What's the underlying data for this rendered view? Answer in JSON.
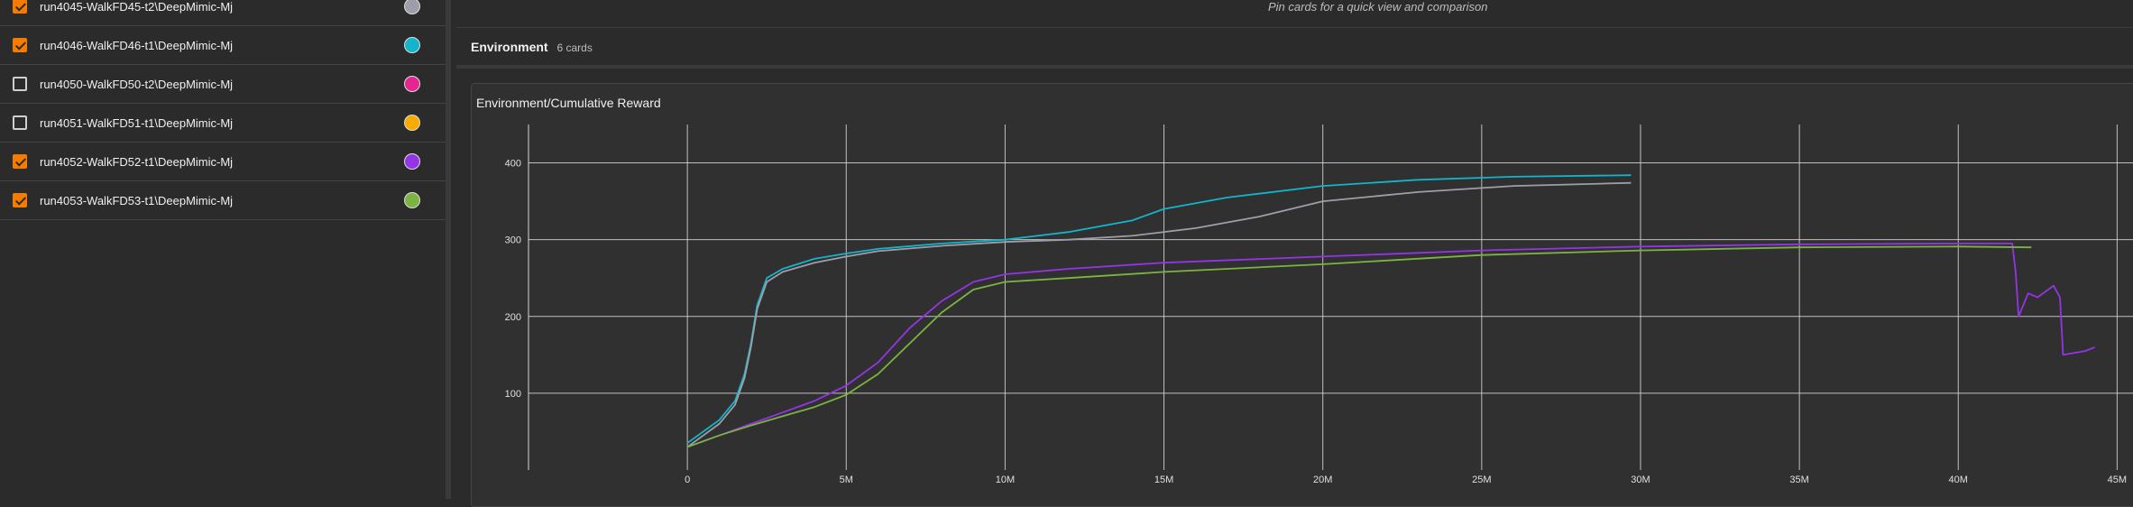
{
  "runs": [
    {
      "label": "run4045-WalkFD45-t2\\DeepMimic-Mj",
      "checked": true,
      "color": "#9e9ea8"
    },
    {
      "label": "run4046-WalkFD46-t1\\DeepMimic-Mj",
      "checked": true,
      "color": "#12b5cb"
    },
    {
      "label": "run4050-WalkFD50-t2\\DeepMimic-Mj",
      "checked": false,
      "color": "#e52592"
    },
    {
      "label": "run4051-WalkFD51-t1\\DeepMimic-Mj",
      "checked": false,
      "color": "#f9ab00"
    },
    {
      "label": "run4052-WalkFD52-t1\\DeepMimic-Mj",
      "checked": true,
      "color": "#9334e6"
    },
    {
      "label": "run4053-WalkFD53-t1\\DeepMimic-Mj",
      "checked": true,
      "color": "#7cb342"
    }
  ],
  "main": {
    "pin_hint": "Pin cards for a quick view and comparison",
    "section_title": "Environment",
    "section_count": "6 cards",
    "card_title": "Environment/Cumulative Reward"
  },
  "chart_data": {
    "type": "line",
    "title": "Environment/Cumulative Reward",
    "xlabel": "",
    "ylabel": "",
    "xlim": [
      -5000000,
      45500000
    ],
    "ylim": [
      0,
      450
    ],
    "x_ticks": [
      0,
      5000000,
      10000000,
      15000000,
      20000000,
      25000000,
      30000000,
      35000000,
      40000000,
      45000000
    ],
    "x_tick_labels": [
      "0",
      "5M",
      "10M",
      "15M",
      "20M",
      "25M",
      "30M",
      "35M",
      "40M",
      "45M"
    ],
    "y_ticks": [
      100,
      200,
      300,
      400
    ],
    "y_tick_labels": [
      "100",
      "200",
      "300",
      "400"
    ],
    "grid": true,
    "series": [
      {
        "name": "run4046-WalkFD46-t1\\DeepMimic-Mj",
        "color": "#12b5cb",
        "x": [
          0,
          500000,
          1000000,
          1500000,
          1800000,
          2000000,
          2200000,
          2500000,
          3000000,
          4000000,
          5000000,
          6000000,
          8000000,
          10000000,
          12000000,
          14000000,
          15000000,
          17000000,
          20000000,
          23000000,
          26000000,
          29700000
        ],
        "y": [
          35,
          50,
          65,
          90,
          125,
          165,
          215,
          250,
          262,
          275,
          282,
          288,
          295,
          300,
          310,
          325,
          340,
          355,
          370,
          378,
          382,
          384
        ]
      },
      {
        "name": "run4045-WalkFD45-t2\\DeepMimic-Mj",
        "color": "#9e9ea8",
        "x": [
          0,
          500000,
          1000000,
          1500000,
          1800000,
          2000000,
          2200000,
          2500000,
          3000000,
          4000000,
          5000000,
          6000000,
          8000000,
          10000000,
          12000000,
          14000000,
          16000000,
          18000000,
          20000000,
          23000000,
          26000000,
          29700000
        ],
        "y": [
          30,
          45,
          60,
          85,
          120,
          160,
          210,
          245,
          258,
          270,
          278,
          285,
          292,
          297,
          300,
          305,
          315,
          330,
          350,
          362,
          370,
          374
        ]
      },
      {
        "name": "run4052-WalkFD52-t1\\DeepMimic-Mj",
        "color": "#9334e6",
        "x": [
          0,
          1000000,
          2000000,
          3000000,
          4000000,
          5000000,
          6000000,
          7000000,
          8000000,
          9000000,
          10000000,
          12000000,
          15000000,
          20000000,
          25000000,
          30000000,
          35000000,
          40000000,
          41700000,
          41800000,
          41900000,
          42200000,
          42500000,
          43000000,
          43200000,
          43300000,
          44000000,
          44300000
        ],
        "y": [
          30,
          45,
          60,
          75,
          90,
          110,
          140,
          185,
          220,
          245,
          255,
          262,
          270,
          278,
          286,
          291,
          294,
          295,
          295,
          260,
          200,
          230,
          225,
          240,
          225,
          150,
          155,
          160
        ]
      },
      {
        "name": "run4053-WalkFD53-t1\\DeepMimic-Mj",
        "color": "#7cb342",
        "x": [
          0,
          1000000,
          2000000,
          3000000,
          4000000,
          5000000,
          6000000,
          7000000,
          8000000,
          9000000,
          10000000,
          12000000,
          15000000,
          20000000,
          25000000,
          30000000,
          35000000,
          40000000,
          42300000
        ],
        "y": [
          30,
          45,
          58,
          70,
          82,
          98,
          125,
          165,
          205,
          235,
          245,
          250,
          258,
          268,
          280,
          286,
          290,
          291,
          290
        ]
      }
    ]
  }
}
